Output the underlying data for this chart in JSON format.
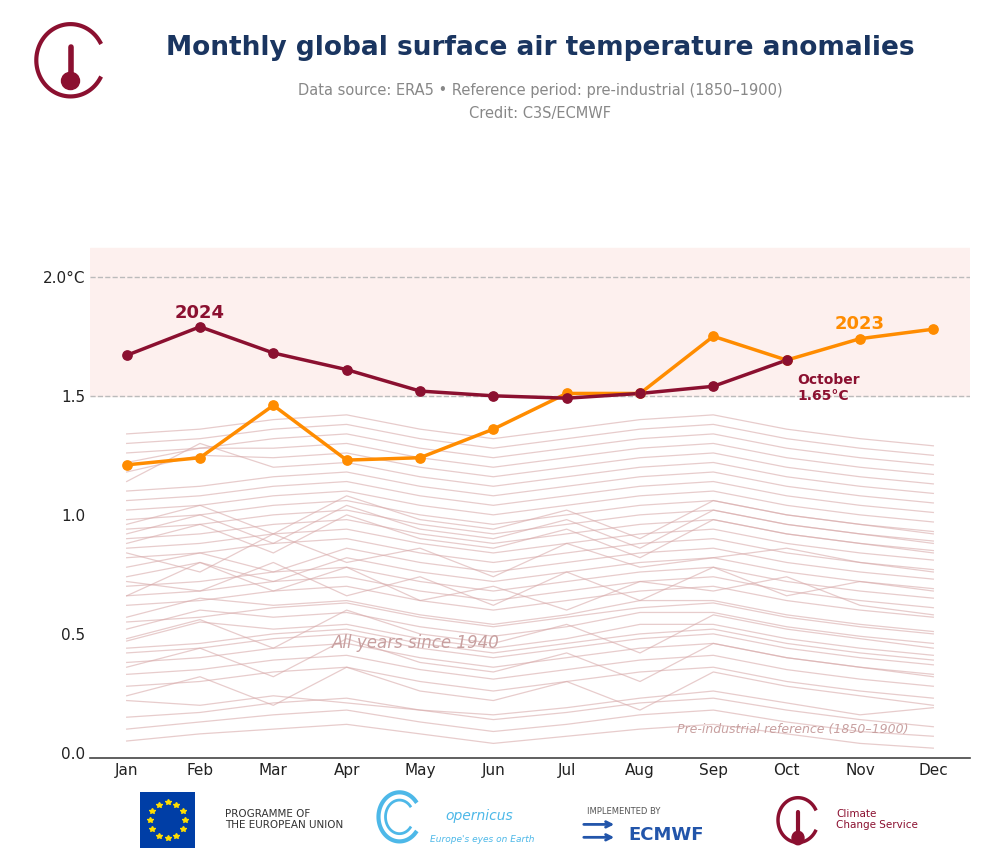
{
  "title": "Monthly global surface air temperature anomalies",
  "subtitle1": "Data source: ERA5 • Reference period: pre-industrial (1850–1900)",
  "subtitle2": "Credit: C3S/ECMWF",
  "months": [
    "Jan",
    "Feb",
    "Mar",
    "Apr",
    "May",
    "Jun",
    "Jul",
    "Aug",
    "Sep",
    "Oct",
    "Nov",
    "Dec"
  ],
  "data_2024": [
    1.67,
    1.79,
    1.68,
    1.61,
    1.52,
    1.5,
    1.49,
    1.51,
    1.54,
    1.65
  ],
  "data_2023": [
    1.21,
    1.24,
    1.46,
    1.23,
    1.24,
    1.36,
    1.51,
    1.51,
    1.75,
    1.65,
    1.74,
    1.78
  ],
  "color_2024": "#8B1030",
  "color_2023": "#FF8C00",
  "background_fill": "#FDF0EE",
  "bg_color": "#FFFFFF",
  "ylim": [
    -0.02,
    2.15
  ],
  "yticks": [
    0.0,
    0.5,
    1.0,
    1.5,
    2.0
  ],
  "threshold_15": 1.5,
  "threshold_20": 2.0,
  "label_2024": "2024",
  "label_2023": "2023",
  "all_years_label": "All years since 1940",
  "preindustrial_label": "Pre-industrial reference (1850–1900)",
  "bg_line_color": "#D8AAAA",
  "background_years": [
    [
      0.22,
      0.2,
      0.24,
      0.21,
      0.18,
      0.16,
      0.19,
      0.23,
      0.26,
      0.21,
      0.16,
      0.19
    ],
    [
      0.05,
      0.08,
      0.1,
      0.12,
      0.08,
      0.04,
      0.07,
      0.1,
      0.12,
      0.08,
      0.04,
      0.02
    ],
    [
      0.1,
      0.13,
      0.16,
      0.18,
      0.13,
      0.09,
      0.12,
      0.16,
      0.18,
      0.13,
      0.09,
      0.07
    ],
    [
      0.15,
      0.17,
      0.21,
      0.23,
      0.18,
      0.14,
      0.17,
      0.21,
      0.23,
      0.18,
      0.14,
      0.11
    ],
    [
      0.28,
      0.3,
      0.34,
      0.36,
      0.3,
      0.26,
      0.3,
      0.34,
      0.36,
      0.3,
      0.26,
      0.23
    ],
    [
      0.33,
      0.35,
      0.39,
      0.41,
      0.35,
      0.31,
      0.35,
      0.39,
      0.41,
      0.35,
      0.31,
      0.28
    ],
    [
      0.38,
      0.4,
      0.44,
      0.46,
      0.4,
      0.36,
      0.4,
      0.44,
      0.46,
      0.4,
      0.36,
      0.33
    ],
    [
      0.42,
      0.44,
      0.48,
      0.5,
      0.44,
      0.4,
      0.44,
      0.48,
      0.5,
      0.44,
      0.4,
      0.37
    ],
    [
      0.47,
      0.55,
      0.52,
      0.54,
      0.48,
      0.44,
      0.48,
      0.54,
      0.54,
      0.48,
      0.44,
      0.41
    ],
    [
      0.52,
      0.6,
      0.57,
      0.59,
      0.53,
      0.49,
      0.53,
      0.59,
      0.59,
      0.53,
      0.49,
      0.46
    ],
    [
      0.57,
      0.65,
      0.62,
      0.64,
      0.58,
      0.54,
      0.58,
      0.64,
      0.64,
      0.58,
      0.54,
      0.51
    ],
    [
      0.62,
      0.64,
      0.68,
      0.7,
      0.64,
      0.6,
      0.64,
      0.68,
      0.7,
      0.64,
      0.6,
      0.57
    ],
    [
      0.66,
      0.68,
      0.72,
      0.74,
      0.68,
      0.64,
      0.68,
      0.72,
      0.74,
      0.68,
      0.64,
      0.61
    ],
    [
      0.7,
      0.72,
      0.76,
      0.78,
      0.72,
      0.68,
      0.72,
      0.76,
      0.78,
      0.72,
      0.68,
      0.65
    ],
    [
      0.74,
      0.8,
      0.72,
      0.82,
      0.76,
      0.72,
      0.76,
      0.8,
      0.82,
      0.76,
      0.72,
      0.69
    ],
    [
      0.78,
      0.84,
      0.76,
      0.86,
      0.8,
      0.76,
      0.8,
      0.84,
      0.86,
      0.8,
      0.76,
      0.73
    ],
    [
      0.82,
      0.84,
      0.88,
      0.9,
      0.84,
      0.8,
      0.84,
      0.88,
      0.9,
      0.84,
      0.8,
      0.77
    ],
    [
      0.86,
      0.88,
      0.92,
      0.94,
      0.88,
      0.84,
      0.88,
      0.92,
      0.94,
      0.88,
      0.84,
      0.81
    ],
    [
      0.9,
      0.92,
      0.96,
      0.98,
      0.92,
      0.88,
      0.92,
      0.96,
      0.98,
      0.92,
      0.88,
      0.85
    ],
    [
      0.94,
      0.96,
      1.0,
      1.02,
      0.96,
      0.92,
      0.96,
      1.0,
      1.02,
      0.96,
      0.92,
      0.89
    ],
    [
      0.98,
      1.0,
      1.04,
      1.06,
      1.0,
      0.96,
      1.0,
      1.04,
      1.06,
      1.0,
      0.96,
      0.93
    ],
    [
      1.02,
      1.04,
      1.08,
      1.1,
      1.04,
      1.0,
      1.04,
      1.08,
      1.1,
      1.04,
      1.0,
      0.97
    ],
    [
      1.06,
      1.08,
      1.12,
      1.14,
      1.08,
      1.04,
      1.08,
      1.12,
      1.14,
      1.08,
      1.04,
      1.01
    ],
    [
      1.1,
      1.12,
      1.16,
      1.18,
      1.12,
      1.08,
      1.12,
      1.16,
      1.18,
      1.12,
      1.08,
      1.05
    ],
    [
      0.44,
      0.46,
      0.5,
      0.52,
      0.46,
      0.42,
      0.46,
      0.5,
      0.52,
      0.46,
      0.42,
      0.39
    ],
    [
      0.55,
      0.57,
      0.61,
      0.63,
      0.57,
      0.53,
      0.57,
      0.61,
      0.63,
      0.57,
      0.53,
      0.5
    ],
    [
      1.14,
      1.3,
      1.2,
      1.22,
      1.16,
      1.12,
      1.16,
      1.2,
      1.22,
      1.16,
      1.12,
      1.09
    ],
    [
      1.18,
      1.25,
      1.24,
      1.26,
      1.2,
      1.16,
      1.2,
      1.24,
      1.26,
      1.2,
      1.16,
      1.13
    ],
    [
      1.22,
      1.28,
      1.28,
      1.3,
      1.24,
      1.2,
      1.24,
      1.28,
      1.3,
      1.24,
      1.2,
      1.17
    ],
    [
      1.26,
      1.28,
      1.32,
      1.34,
      1.28,
      1.24,
      1.28,
      1.32,
      1.34,
      1.28,
      1.24,
      1.21
    ],
    [
      1.3,
      1.32,
      1.36,
      1.38,
      1.32,
      1.28,
      1.32,
      1.36,
      1.38,
      1.32,
      1.28,
      1.25
    ],
    [
      1.34,
      1.36,
      1.4,
      1.42,
      1.36,
      1.32,
      1.36,
      1.4,
      1.42,
      1.36,
      1.32,
      1.29
    ],
    [
      0.66,
      0.8,
      0.68,
      0.78,
      0.64,
      0.7,
      0.6,
      0.72,
      0.68,
      0.74,
      0.62,
      0.58
    ],
    [
      0.72,
      0.68,
      0.8,
      0.66,
      0.74,
      0.62,
      0.76,
      0.64,
      0.78,
      0.66,
      0.72,
      0.68
    ],
    [
      0.48,
      0.56,
      0.44,
      0.6,
      0.5,
      0.46,
      0.54,
      0.42,
      0.58,
      0.52,
      0.48,
      0.44
    ],
    [
      0.36,
      0.44,
      0.32,
      0.48,
      0.38,
      0.34,
      0.42,
      0.3,
      0.46,
      0.4,
      0.36,
      0.32
    ],
    [
      0.24,
      0.32,
      0.2,
      0.36,
      0.26,
      0.22,
      0.3,
      0.18,
      0.34,
      0.28,
      0.24,
      0.2
    ],
    [
      0.84,
      0.76,
      0.92,
      0.8,
      0.86,
      0.74,
      0.88,
      0.78,
      0.82,
      0.86,
      0.8,
      0.76
    ],
    [
      0.88,
      0.96,
      0.84,
      1.0,
      0.9,
      0.86,
      0.94,
      0.82,
      0.98,
      0.92,
      0.88,
      0.84
    ],
    [
      0.92,
      1.0,
      0.88,
      1.04,
      0.94,
      0.9,
      0.98,
      0.86,
      1.02,
      0.96,
      0.92,
      0.88
    ],
    [
      0.96,
      1.04,
      0.92,
      1.08,
      0.98,
      0.94,
      1.02,
      0.9,
      1.06,
      1.0,
      0.96,
      0.92
    ]
  ]
}
